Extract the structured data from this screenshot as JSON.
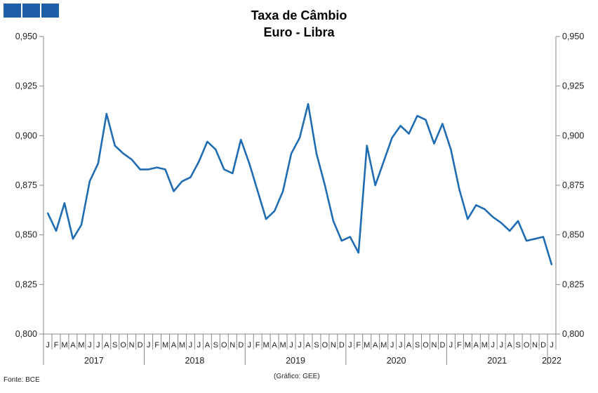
{
  "chart_data": {
    "type": "line",
    "title": "Taxa de Câmbio",
    "subtitle": "Euro - Libra",
    "ylim": [
      0.8,
      0.95
    ],
    "yticks": [
      "0,800",
      "0,825",
      "0,850",
      "0,875",
      "0,900",
      "0,925",
      "0,950"
    ],
    "years": [
      "2017",
      "2018",
      "2019",
      "2020",
      "2021",
      "2022"
    ],
    "month_letters": [
      "J",
      "F",
      "M",
      "A",
      "M",
      "J",
      "J",
      "A",
      "S",
      "O",
      "N",
      "D"
    ],
    "series": [
      {
        "color": "#1f6cb3",
        "values": [
          0.861,
          0.852,
          0.866,
          0.848,
          0.855,
          0.877,
          0.886,
          0.911,
          0.895,
          0.891,
          0.888,
          0.883,
          0.883,
          0.884,
          0.883,
          0.872,
          0.877,
          0.879,
          0.887,
          0.897,
          0.893,
          0.883,
          0.881,
          0.898,
          0.886,
          0.872,
          0.858,
          0.862,
          0.872,
          0.891,
          0.899,
          0.916,
          0.891,
          0.875,
          0.857,
          0.847,
          0.849,
          0.841,
          0.895,
          0.875,
          0.887,
          0.899,
          0.905,
          0.901,
          0.91,
          0.908,
          0.896,
          0.906,
          0.893,
          0.873,
          0.858,
          0.865,
          0.863,
          0.859,
          0.856,
          0.852,
          0.857,
          0.847,
          0.848,
          0.849,
          0.835
        ]
      }
    ]
  },
  "source_note": "Fonte: BCE",
  "credit_note": "(Gráfico: GEE)"
}
